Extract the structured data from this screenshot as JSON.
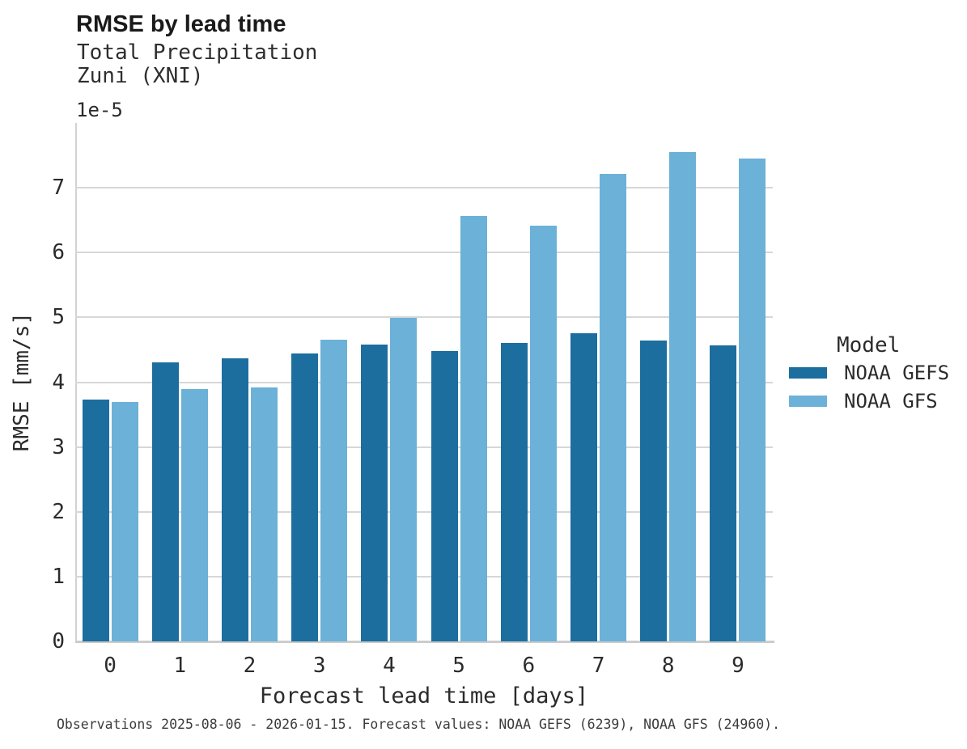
{
  "header": {
    "title": "RMSE by lead time",
    "subtitle1": "Total Precipitation",
    "subtitle2": "Zuni (XNI)"
  },
  "axis": {
    "offset_label": "1e-5"
  },
  "legend": {
    "title": "Model"
  },
  "caption": "Observations 2025-08-06 - 2026-01-15. Forecast values: NOAA GEFS (6239), NOAA GFS (24960).",
  "chart_data": {
    "type": "bar",
    "title": "RMSE by lead time",
    "subtitle": [
      "Total Precipitation",
      "Zuni (XNI)"
    ],
    "categories": [
      "0",
      "1",
      "2",
      "3",
      "4",
      "5",
      "6",
      "7",
      "8",
      "9"
    ],
    "series": [
      {
        "name": "NOAA GEFS",
        "color": "#1c6e9e",
        "values": [
          3.73,
          4.31,
          4.37,
          4.44,
          4.58,
          4.48,
          4.61,
          4.75,
          4.64,
          4.57
        ]
      },
      {
        "name": "NOAA GFS",
        "color": "#6cb1d7",
        "values": [
          3.69,
          3.9,
          3.92,
          4.66,
          4.99,
          6.57,
          6.42,
          7.22,
          7.55,
          7.45
        ]
      }
    ],
    "value_units": "1e-5 mm/s",
    "offset_label": "1e-5",
    "xlabel": "Forecast lead time [days]",
    "ylabel": "RMSE [mm/s]",
    "ylim": [
      0,
      8
    ],
    "yticks": [
      0,
      1,
      2,
      3,
      4,
      5,
      6,
      7
    ],
    "grid": true,
    "legend_title": "Model",
    "legend_position": "right",
    "colors": {
      "noaa_gefs": "#1c6e9e",
      "noaa_gfs": "#6cb1d7",
      "gridline": "#d7d7d7",
      "spine": "#d2d2d2",
      "text": "#2b2b2b"
    }
  }
}
